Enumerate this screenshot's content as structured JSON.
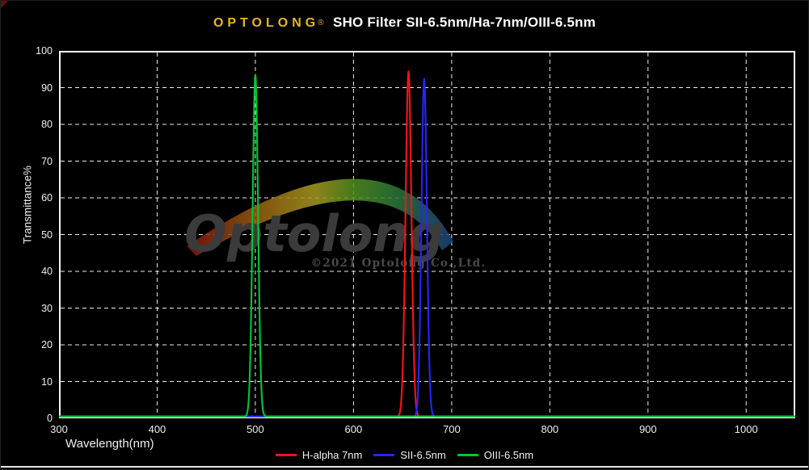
{
  "page": {
    "background": "#000000"
  },
  "header": {
    "brand": "OPTOLONG",
    "registered_mark": "®",
    "title_rest": "SHO Filter SII-6.5nm/Ha-7nm/OIII-6.5nm",
    "brand_color": "#E9B51F"
  },
  "watermark": {
    "logo_text": "Optolong",
    "copyright": "©2021 Optolong Co.,Ltd."
  },
  "chart_data": {
    "type": "line",
    "title": "OPTOLONG® SHO Filter SII-6.5nm/Ha-7nm/OIII-6.5nm",
    "xlabel": "Wavelength(nm)",
    "ylabel": "Transmittance%",
    "xlim": [
      300,
      1050
    ],
    "ylim": [
      0,
      100
    ],
    "x_ticks": [
      300,
      400,
      500,
      600,
      700,
      800,
      900,
      1000
    ],
    "y_ticks": [
      0,
      10,
      20,
      30,
      40,
      50,
      60,
      70,
      80,
      90,
      100
    ],
    "grid": "dashed",
    "grid_color": "#ffffff",
    "axis_border_color": "#f2f2f2",
    "legend_position": "bottom-center",
    "series": [
      {
        "name": "H-alpha 7nm",
        "color": "#FF1212",
        "curve": "bandpass-peak",
        "center_nm": 656,
        "fwhm_nm": 7,
        "peak_pct": 94,
        "baseline_pct": 0.4,
        "points": [
          [
            300,
            0.4
          ],
          [
            640,
            0.5
          ],
          [
            652.5,
            47
          ],
          [
            656,
            94
          ],
          [
            659.5,
            47
          ],
          [
            672,
            0.5
          ],
          [
            1050,
            0.4
          ]
        ]
      },
      {
        "name": "SII-6.5nm",
        "color": "#2525FF",
        "curve": "bandpass-peak",
        "center_nm": 672,
        "fwhm_nm": 6.5,
        "peak_pct": 92,
        "baseline_pct": 0.4,
        "points": [
          [
            300,
            0.4
          ],
          [
            658,
            0.5
          ],
          [
            668.7,
            46
          ],
          [
            672,
            92
          ],
          [
            675.3,
            46
          ],
          [
            686,
            0.5
          ],
          [
            1050,
            0.4
          ]
        ]
      },
      {
        "name": "OIII-6.5nm",
        "color": "#00C832",
        "curve": "bandpass-peak",
        "center_nm": 500,
        "fwhm_nm": 6.5,
        "peak_pct": 93,
        "baseline_pct": 0.5,
        "points": [
          [
            300,
            0.5
          ],
          [
            486,
            0.5
          ],
          [
            496.7,
            46.5
          ],
          [
            500,
            93
          ],
          [
            503.3,
            46.5
          ],
          [
            514,
            0.5
          ],
          [
            1050,
            0.5
          ]
        ]
      }
    ]
  },
  "decorations": {
    "corner_mark_color": "#7A1410",
    "bottom_line_color": "#E6E6E6",
    "watermark_text_color": "#3B3B3B",
    "watermark_copyright_color": "#4A4A4A"
  }
}
